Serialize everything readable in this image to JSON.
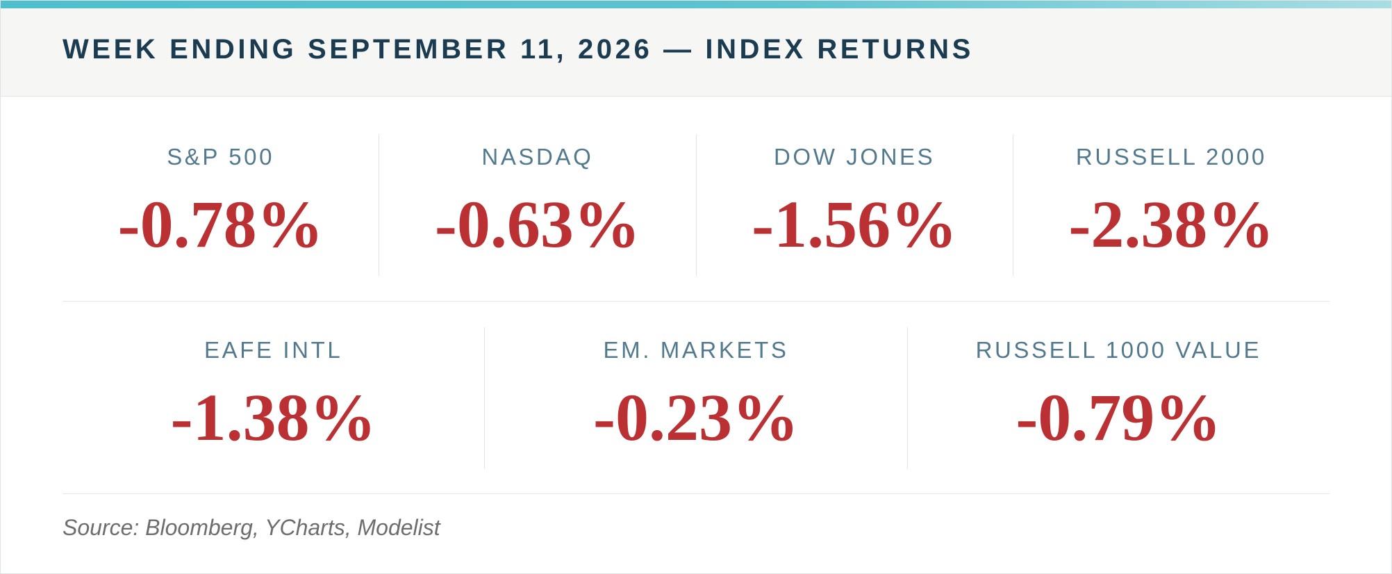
{
  "header": {
    "title": "WEEK ENDING SEPTEMBER 11, 2026 — INDEX RETURNS"
  },
  "colors": {
    "accent": "#4ebfcd",
    "title": "#1b3b50",
    "label": "#52798d",
    "negative": "#bb3133"
  },
  "indices": [
    {
      "label": "S&P 500",
      "value": "-0.78%"
    },
    {
      "label": "NASDAQ",
      "value": "-0.63%"
    },
    {
      "label": "DOW JONES",
      "value": "-1.56%"
    },
    {
      "label": "RUSSELL 2000",
      "value": "-2.38%"
    },
    {
      "label": "EAFE INTL",
      "value": "-1.38%"
    },
    {
      "label": "EM. MARKETS",
      "value": "-0.23%"
    },
    {
      "label": "RUSSELL 1000 VALUE",
      "value": "-0.79%"
    }
  ],
  "footer": {
    "source": "Source: Bloomberg, YCharts, Modelist"
  }
}
